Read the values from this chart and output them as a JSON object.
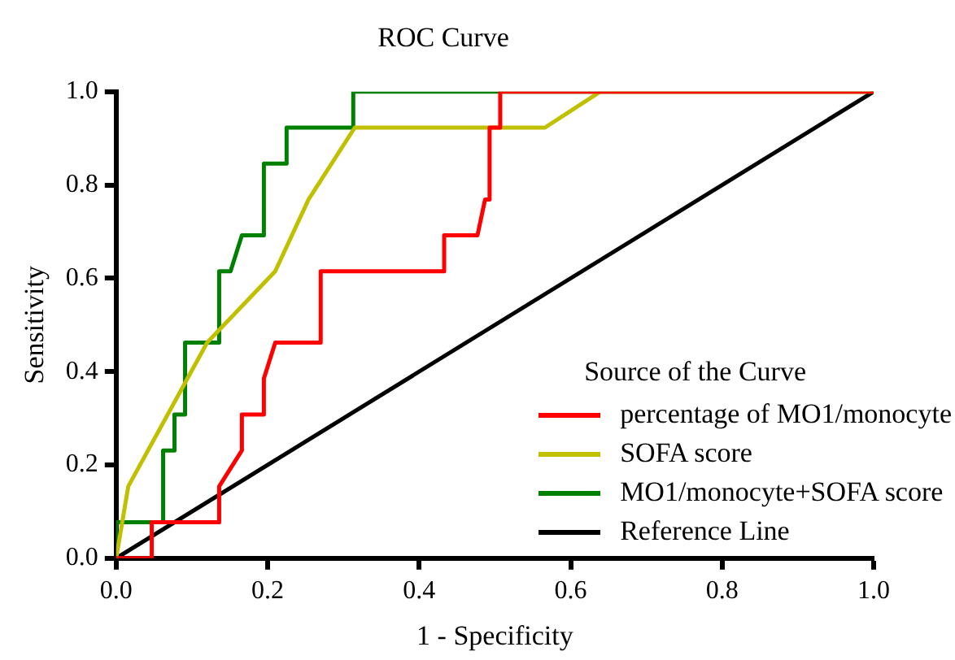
{
  "chart_data": {
    "type": "line",
    "title": "ROC Curve",
    "xlabel": "1 - Specificity",
    "ylabel": "Sensitivity",
    "legend_title": "Source of the Curve",
    "xlim": [
      0,
      1
    ],
    "ylim": [
      0,
      1
    ],
    "xticks": [
      {
        "value": 0,
        "label": "0.0"
      },
      0.2,
      0.4,
      0.6,
      0.8,
      {
        "value": 1,
        "label": "1.0"
      }
    ],
    "yticks": [
      {
        "value": 0,
        "label": "0.0"
      },
      0.2,
      0.4,
      0.6,
      0.8,
      {
        "value": 1,
        "label": "1.0"
      }
    ],
    "grid": false,
    "legend": "bottom right",
    "marker": "none",
    "line_style": "solid",
    "series": [
      {
        "name": "percentage of MO1/monocyte",
        "color": "#ff0000",
        "x": [
          0,
          0.047,
          0.047,
          0.136,
          0.136,
          0.166,
          0.166,
          0.195,
          0.195,
          0.21,
          0.27,
          0.27,
          0.433,
          0.433,
          0.477,
          0.487,
          0.493,
          0.493,
          0.507,
          0.507,
          1
        ],
        "values": [
          0,
          0,
          0.077,
          0.077,
          0.154,
          0.231,
          0.308,
          0.308,
          0.385,
          0.462,
          0.462,
          0.615,
          0.615,
          0.692,
          0.692,
          0.769,
          0.769,
          0.923,
          0.923,
          1,
          1
        ]
      },
      {
        "name": "SOFA score",
        "color": "#c0c000",
        "x": [
          0,
          0.016,
          0.12,
          0.21,
          0.254,
          0.315,
          0.566,
          0.639,
          1
        ],
        "values": [
          0,
          0.154,
          0.462,
          0.615,
          0.769,
          0.923,
          0.923,
          1,
          1
        ]
      },
      {
        "name": "MO1/monocyte+SOFA score",
        "color": "#008000",
        "x": [
          0,
          0,
          0.062,
          0.062,
          0.077,
          0.077,
          0.091,
          0.091,
          0.136,
          0.136,
          0.151,
          0.166,
          0.195,
          0.195,
          0.225,
          0.225,
          0.313,
          0.313,
          1
        ],
        "values": [
          0,
          0.077,
          0.077,
          0.231,
          0.231,
          0.308,
          0.308,
          0.462,
          0.462,
          0.615,
          0.615,
          0.692,
          0.692,
          0.846,
          0.846,
          0.923,
          0.923,
          1,
          1
        ]
      },
      {
        "name": "Reference Line",
        "color": "#000000",
        "x": [
          0,
          1
        ],
        "values": [
          0,
          1
        ]
      }
    ]
  }
}
